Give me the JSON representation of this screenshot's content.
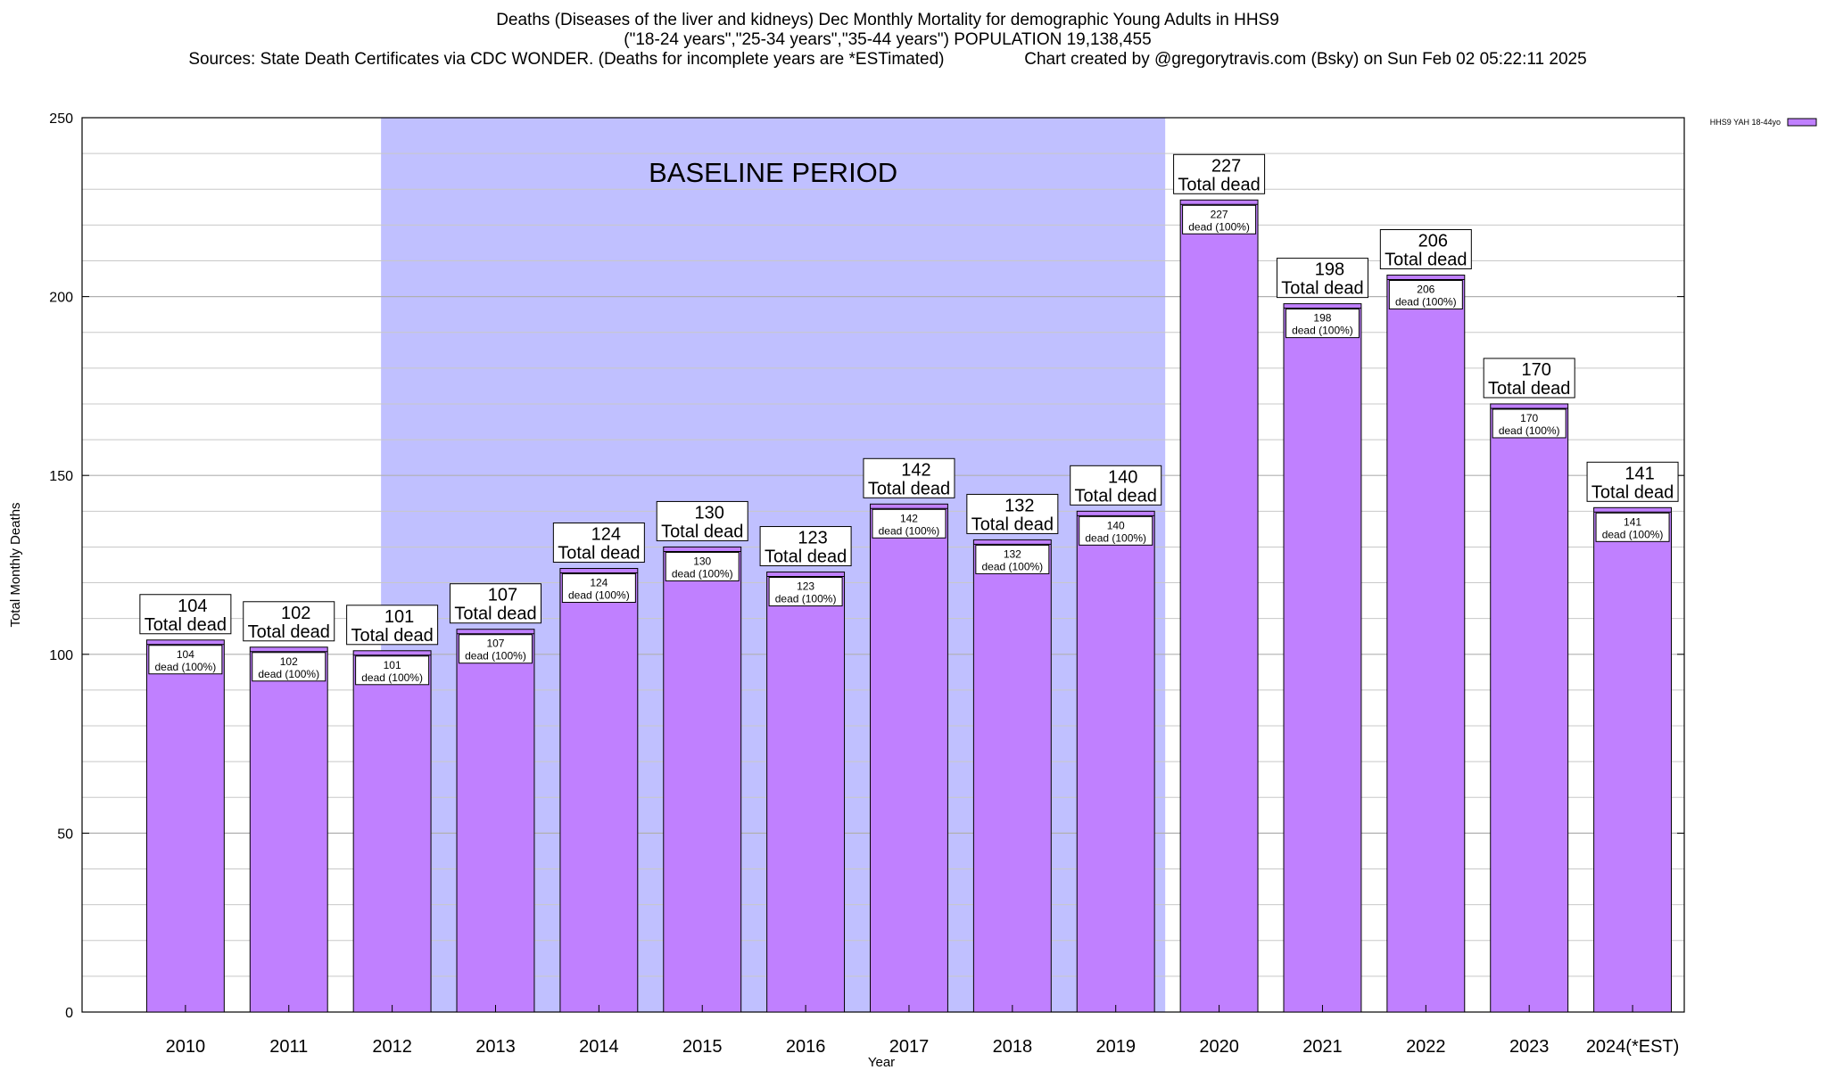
{
  "title": {
    "line1": "Deaths (Diseases of the liver and kidneys) Dec Monthly Mortality for demographic Young Adults in HHS9",
    "line2": "(\"18-24 years\",\"25-34 years\",\"35-44 years\") POPULATION 19,138,455",
    "line3": "Sources: State Death Certificates via CDC WONDER. (Deaths for incomplete years are *ESTimated)                 Chart created by @gregorytravis.com (Bsky) on Sun Feb 02 05:22:11 2025"
  },
  "colors": {
    "bar": "#c080ff",
    "baseline_band": "#c0c0ff",
    "grid": "#c8c8c8"
  },
  "chart_data": {
    "type": "bar",
    "xlabel": "Year",
    "ylabel": "Total Monthly Deaths",
    "ylim": [
      0,
      250
    ],
    "yticks": [
      0,
      50,
      100,
      150,
      200,
      250
    ],
    "grid": true,
    "legend": {
      "position": "top-right",
      "entries": [
        "HHS9 YAH 18-44yo"
      ]
    },
    "categories": [
      "2010",
      "2011",
      "2012",
      "2013",
      "2014",
      "2015",
      "2016",
      "2017",
      "2018",
      "2019",
      "2020",
      "2021",
      "2022",
      "2023",
      "2024(*EST)"
    ],
    "series": [
      {
        "name": "HHS9 YAH 18-44yo",
        "values": [
          104,
          102,
          101,
          107,
          124,
          130,
          123,
          142,
          132,
          140,
          227,
          198,
          206,
          170,
          141
        ]
      }
    ],
    "total_label_suffix": "Total dead",
    "inner_label_suffix": "dead (100%)",
    "annotation": {
      "text": "BASELINE PERIOD",
      "start_category": "2012",
      "end_category": "2019"
    }
  }
}
